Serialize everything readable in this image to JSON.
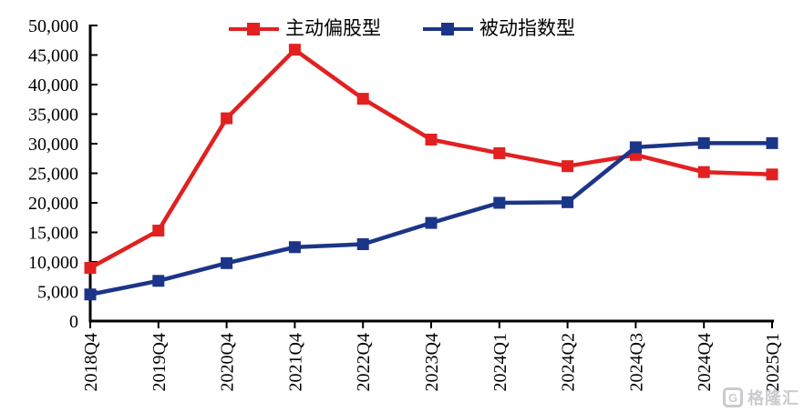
{
  "chart_data": {
    "type": "line",
    "title": "",
    "xlabel": "",
    "ylabel": "",
    "categories": [
      "2018Q4",
      "2019Q4",
      "2020Q4",
      "2021Q4",
      "2022Q4",
      "2023Q4",
      "2024Q1",
      "2024Q2",
      "2024Q3",
      "2024Q4",
      "2025Q1"
    ],
    "series": [
      {
        "name": "主动偏股型",
        "color": "#e22020",
        "marker": "square",
        "values": [
          9000,
          15300,
          34300,
          45900,
          37600,
          30700,
          28400,
          26200,
          28100,
          25200,
          24800
        ]
      },
      {
        "name": "被动指数型",
        "color": "#1b3588",
        "marker": "square",
        "values": [
          4500,
          6800,
          9800,
          12500,
          13000,
          16600,
          20000,
          20100,
          29400,
          30100,
          30100
        ]
      }
    ],
    "ylim": [
      0,
      50000
    ],
    "ytick_step": 5000,
    "ytick_labels": [
      "0",
      "5,000",
      "10,000",
      "15,000",
      "20,000",
      "25,000",
      "30,000",
      "35,000",
      "40,000",
      "45,000",
      "50,000"
    ],
    "grid": false,
    "legend_position": "top-center",
    "x_label_rotation": -90,
    "axis_color": "#000000"
  },
  "watermark": {
    "logo": "G",
    "text": "格隆汇"
  }
}
